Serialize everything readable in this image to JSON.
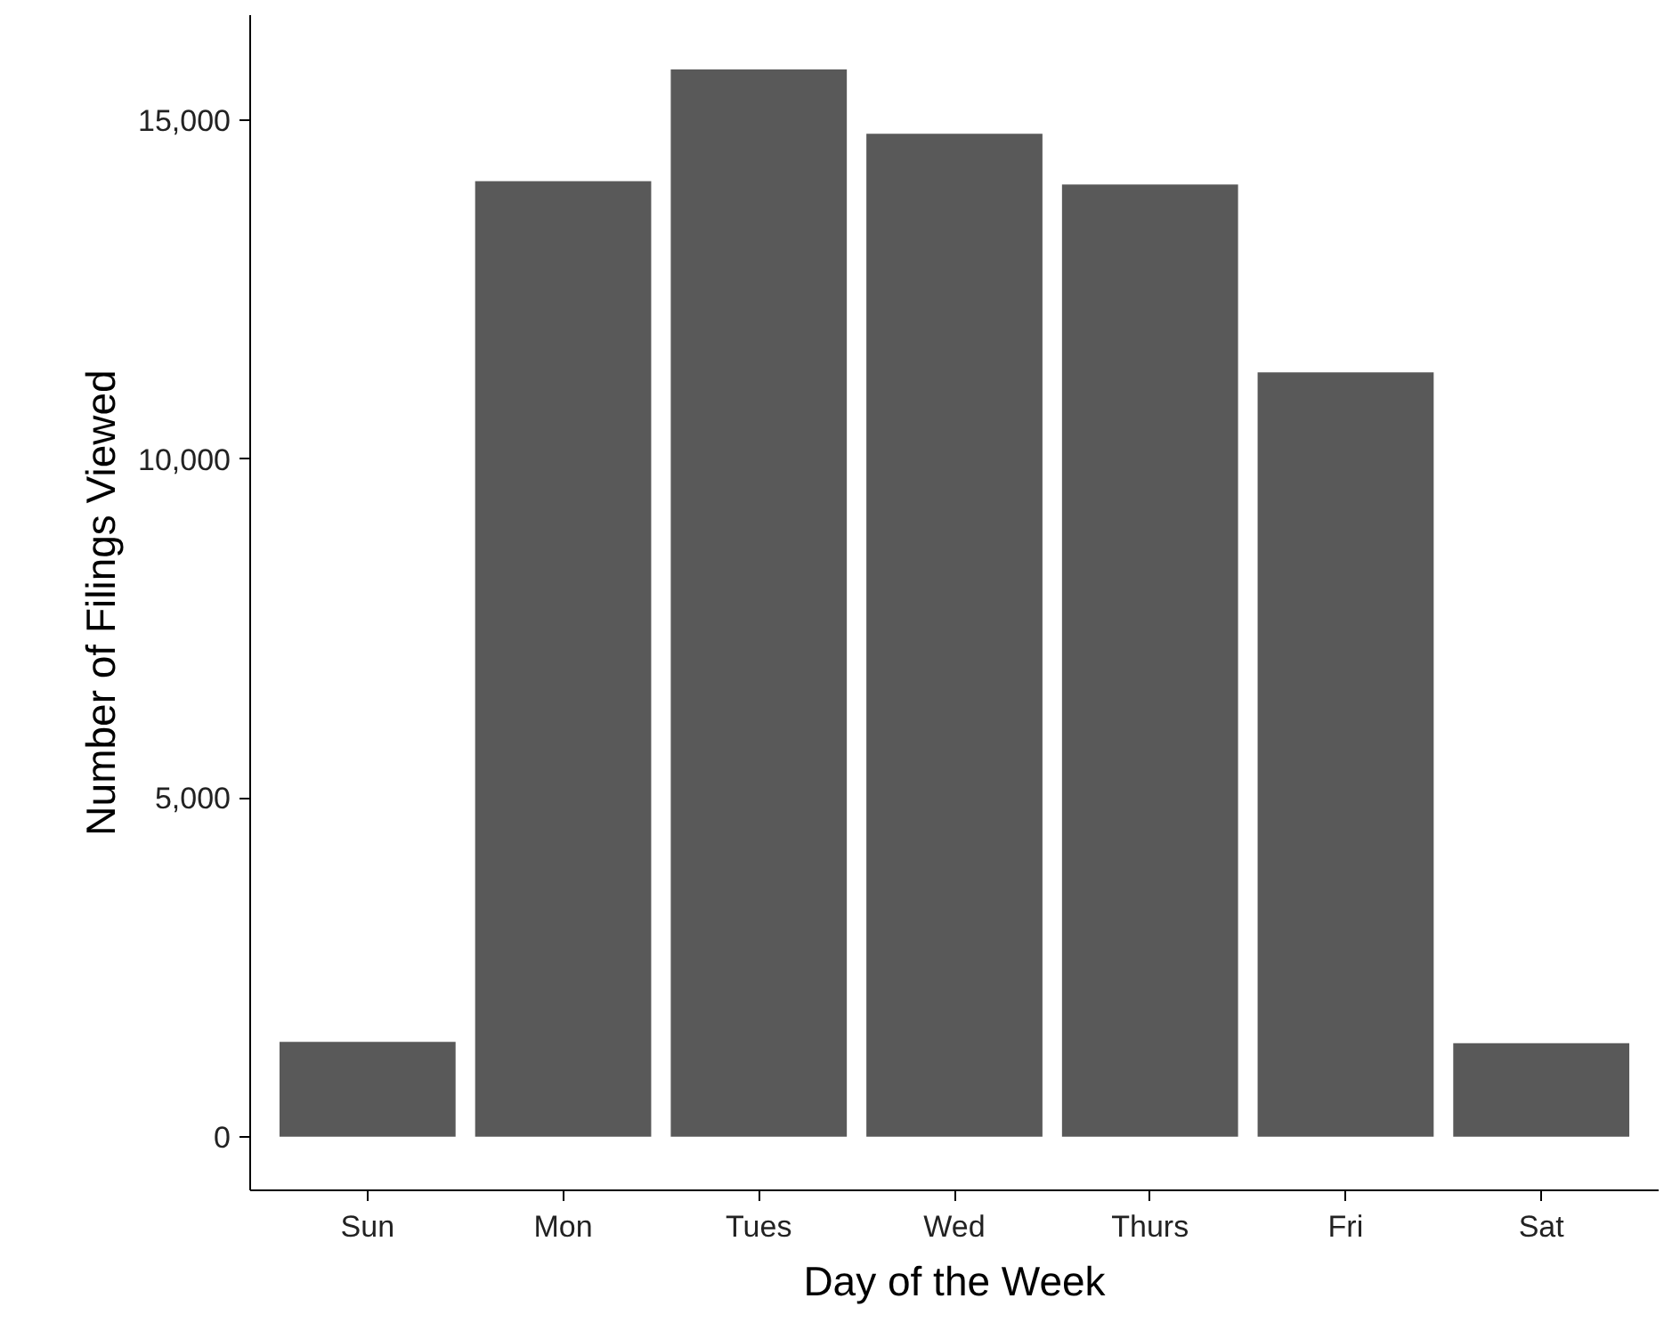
{
  "chart_data": {
    "type": "bar",
    "xlabel": "Day of the Week",
    "ylabel": "Number of Filings Viewed",
    "categories": [
      "Sun",
      "Mon",
      "Tues",
      "Wed",
      "Thurs",
      "Fri",
      "Sat"
    ],
    "values": [
      1400,
      14100,
      15750,
      14800,
      14050,
      11280,
      1380
    ],
    "color": "#595959",
    "ylim": [
      -790,
      16550
    ],
    "yticks": [
      0,
      {
        "value": 5000,
        "label": "5,000"
      },
      {
        "value": 10000,
        "label": "10,000"
      },
      {
        "value": 15000,
        "label": "15,000"
      }
    ],
    "grid": false
  }
}
